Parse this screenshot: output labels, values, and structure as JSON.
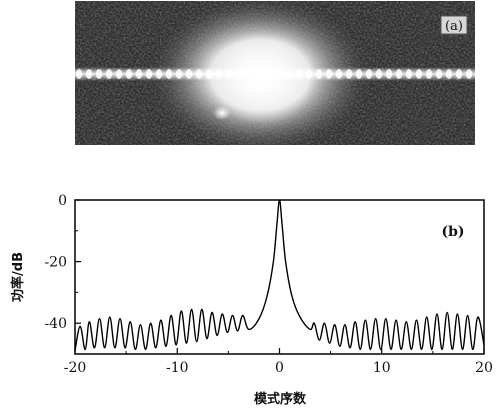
{
  "panel_a": {
    "label": "(a)"
  },
  "chart_data": {
    "type": "line",
    "panel_label": "(b)",
    "title": "",
    "xlabel": "模式序数",
    "ylabel": "功率/dB",
    "xlim": [
      -20,
      20
    ],
    "ylim": [
      -50,
      0
    ],
    "xticks": [
      -20,
      -10,
      0,
      10,
      20
    ],
    "yticks": [
      0,
      -20,
      -40
    ],
    "grid": false,
    "line_color": "#000000",
    "series": [
      {
        "peak": [
          [
            -3,
            -42
          ],
          [
            -2,
            -38.5
          ],
          [
            -1.2,
            -31
          ],
          [
            -0.6,
            -20
          ],
          [
            -0.25,
            -8
          ],
          [
            0,
            0
          ],
          [
            0.25,
            -8
          ],
          [
            0.6,
            -20
          ],
          [
            1.2,
            -31
          ],
          [
            2,
            -38
          ],
          [
            3,
            -42
          ]
        ],
        "ripple_peaks": [
          [
            -19.5,
            -41
          ],
          [
            -18.6,
            -39.5
          ],
          [
            -17.6,
            -38.5
          ],
          [
            -16.6,
            -38
          ],
          [
            -15.6,
            -38.5
          ],
          [
            -14.6,
            -39.5
          ],
          [
            -13.6,
            -40.5
          ],
          [
            -12.6,
            -40
          ],
          [
            -11.6,
            -39
          ],
          [
            -10.6,
            -37.5
          ],
          [
            -9.6,
            -36
          ],
          [
            -8.6,
            -35.5
          ],
          [
            -7.6,
            -35.5
          ],
          [
            -6.6,
            -36.5
          ],
          [
            -5.6,
            -37
          ],
          [
            -4.6,
            -37.5
          ],
          [
            -3.6,
            -37.5
          ],
          [
            3.4,
            -40
          ],
          [
            4.4,
            -40
          ],
          [
            5.4,
            -40.5
          ],
          [
            6.4,
            -40.5
          ],
          [
            7.4,
            -39.5
          ],
          [
            8.4,
            -39
          ],
          [
            9.4,
            -38.5
          ],
          [
            10.4,
            -38.5
          ],
          [
            11.4,
            -39
          ],
          [
            12.4,
            -39.5
          ],
          [
            13.4,
            -39
          ],
          [
            14.4,
            -38
          ],
          [
            15.4,
            -37
          ],
          [
            16.4,
            -36.5
          ],
          [
            17.4,
            -37
          ],
          [
            18.4,
            -37.5
          ],
          [
            19.4,
            -38
          ]
        ],
        "ripple_valleys": [
          [
            -20,
            -49
          ],
          [
            -19,
            -48.5
          ],
          [
            -18.1,
            -48
          ],
          [
            -17.1,
            -48
          ],
          [
            -16.1,
            -48
          ],
          [
            -15.1,
            -48
          ],
          [
            -14.1,
            -48.5
          ],
          [
            -13.1,
            -48.5
          ],
          [
            -12.1,
            -48
          ],
          [
            -11.1,
            -47.5
          ],
          [
            -10.1,
            -47
          ],
          [
            -9.1,
            -46.5
          ],
          [
            -8.1,
            -46
          ],
          [
            -7.1,
            -45
          ],
          [
            -6.1,
            -44
          ],
          [
            -5.1,
            -43
          ],
          [
            -4.1,
            -42.5
          ],
          [
            3.9,
            -45.5
          ],
          [
            4.9,
            -46.5
          ],
          [
            5.9,
            -47.5
          ],
          [
            6.9,
            -48
          ],
          [
            7.9,
            -48.5
          ],
          [
            8.9,
            -48.5
          ],
          [
            9.9,
            -48.5
          ],
          [
            10.9,
            -48.5
          ],
          [
            11.9,
            -48.5
          ],
          [
            12.9,
            -48.5
          ],
          [
            13.9,
            -48.5
          ],
          [
            14.9,
            -48.5
          ],
          [
            15.9,
            -48.5
          ],
          [
            16.9,
            -48.5
          ],
          [
            17.9,
            -48.5
          ],
          [
            18.9,
            -48.5
          ],
          [
            20,
            -47
          ]
        ]
      }
    ]
  }
}
